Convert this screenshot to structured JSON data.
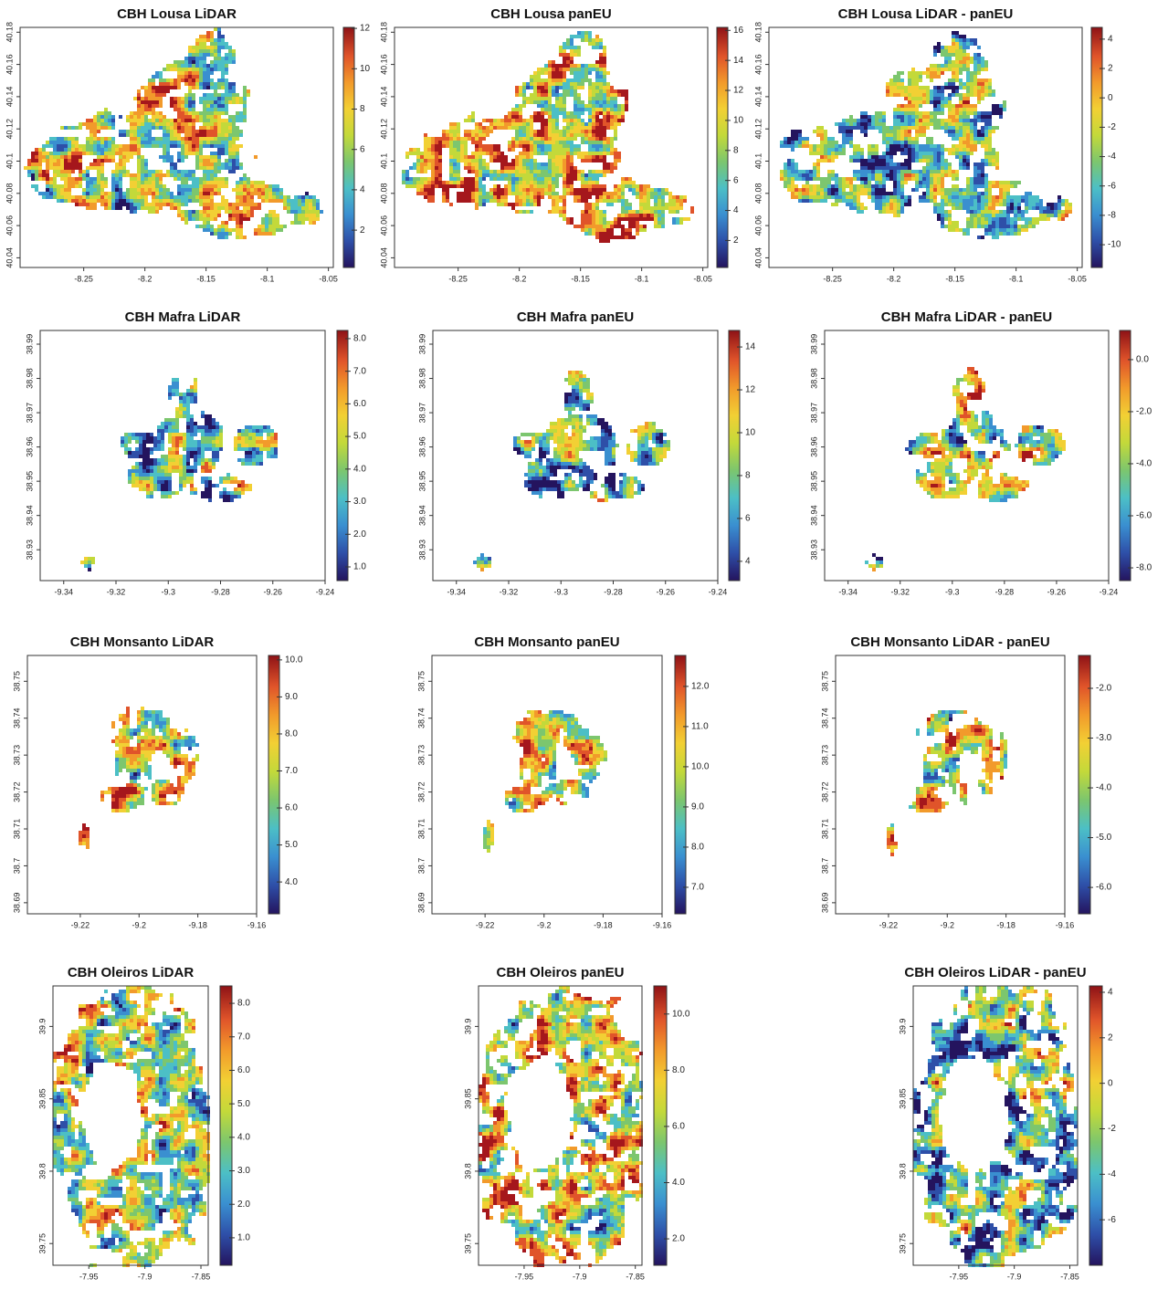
{
  "chart_data": [
    {
      "type": "heatmap",
      "title": "CBH Lousa LiDAR",
      "xlim": [
        -8.302,
        -8.046
      ],
      "xticks": [
        -8.25,
        -8.2,
        -8.15,
        -8.1,
        -8.05
      ],
      "ylim": [
        40.034,
        40.183
      ],
      "yticks": [
        40.04,
        40.06,
        40.08,
        40.1,
        40.12,
        40.14,
        40.16,
        40.18
      ],
      "clim": [
        0.15,
        12.05
      ],
      "cticks": [
        2,
        4,
        6,
        8,
        10,
        12
      ]
    },
    {
      "type": "heatmap",
      "title": "CBH Lousa panEU",
      "xlim": [
        -8.302,
        -8.046
      ],
      "xticks": [
        -8.25,
        -8.2,
        -8.15,
        -8.1,
        -8.05
      ],
      "ylim": [
        40.034,
        40.183
      ],
      "yticks": [
        40.04,
        40.06,
        40.08,
        40.1,
        40.12,
        40.14,
        40.16,
        40.18
      ],
      "clim": [
        0.2,
        16.2
      ],
      "cticks": [
        2,
        4,
        6,
        8,
        10,
        12,
        14,
        16
      ]
    },
    {
      "type": "heatmap",
      "title": "CBH Lousa LiDAR - panEU",
      "xlim": [
        -8.302,
        -8.046
      ],
      "xticks": [
        -8.25,
        -8.2,
        -8.15,
        -8.1,
        -8.05
      ],
      "ylim": [
        40.034,
        40.183
      ],
      "yticks": [
        40.04,
        40.06,
        40.08,
        40.1,
        40.12,
        40.14,
        40.16,
        40.18
      ],
      "clim": [
        -11.55,
        4.8
      ],
      "cticks": [
        -10,
        -8,
        -6,
        -4,
        -2,
        0,
        2,
        4
      ]
    },
    {
      "type": "heatmap",
      "title": "CBH Mafra LiDAR",
      "xlim": [
        -9.349,
        -9.24
      ],
      "xticks": [
        -9.34,
        -9.32,
        -9.3,
        -9.28,
        -9.26,
        -9.24
      ],
      "ylim": [
        38.921,
        38.994
      ],
      "yticks": [
        38.93,
        38.94,
        38.95,
        38.96,
        38.97,
        38.98,
        38.99
      ],
      "clim": [
        0.58,
        8.25
      ],
      "cticks": [
        {
          "value": 1,
          "label": "1.0"
        },
        {
          "value": 2,
          "label": "2.0"
        },
        {
          "value": 3,
          "label": "3.0"
        },
        {
          "value": 4,
          "label": "4.0"
        },
        {
          "value": 5,
          "label": "5.0"
        },
        {
          "value": 6,
          "label": "6.0"
        },
        {
          "value": 7,
          "label": "7.0"
        },
        {
          "value": 8,
          "label": "8.0"
        }
      ]
    },
    {
      "type": "heatmap",
      "title": "CBH Mafra panEU",
      "xlim": [
        -9.349,
        -9.24
      ],
      "xticks": [
        -9.34,
        -9.32,
        -9.3,
        -9.28,
        -9.26,
        -9.24
      ],
      "ylim": [
        38.921,
        38.994
      ],
      "yticks": [
        38.93,
        38.94,
        38.95,
        38.96,
        38.97,
        38.98,
        38.99
      ],
      "clim": [
        3.1,
        14.77
      ],
      "cticks": [
        4,
        6,
        8,
        10,
        12,
        14
      ]
    },
    {
      "type": "heatmap",
      "title": "CBH Mafra LiDAR - panEU",
      "xlim": [
        -9.349,
        -9.24
      ],
      "xticks": [
        -9.34,
        -9.32,
        -9.3,
        -9.28,
        -9.26,
        -9.24
      ],
      "ylim": [
        38.921,
        38.994
      ],
      "yticks": [
        38.93,
        38.94,
        38.95,
        38.96,
        38.97,
        38.98,
        38.99
      ],
      "clim": [
        -8.49,
        1.12
      ],
      "cticks": [
        {
          "value": -8,
          "label": "-8.0"
        },
        {
          "value": -6,
          "label": "-6.0"
        },
        {
          "value": -4,
          "label": "-4.0"
        },
        {
          "value": -2,
          "label": "-2.0"
        },
        {
          "value": 0,
          "label": "0.0"
        }
      ]
    },
    {
      "type": "heatmap",
      "title": "CBH Monsanto LiDAR",
      "xlim": [
        -9.238,
        -9.16
      ],
      "xticks": [
        -9.22,
        -9.2,
        -9.18,
        -9.16
      ],
      "ylim": [
        38.687,
        38.757
      ],
      "yticks": [
        38.69,
        38.7,
        38.71,
        38.72,
        38.73,
        38.74,
        38.75
      ],
      "clim": [
        3.14,
        10.12
      ],
      "cticks": [
        {
          "value": 4,
          "label": "4.0"
        },
        {
          "value": 5,
          "label": "5.0"
        },
        {
          "value": 6,
          "label": "6.0"
        },
        {
          "value": 7,
          "label": "7.0"
        },
        {
          "value": 8,
          "label": "8.0"
        },
        {
          "value": 9,
          "label": "9.0"
        },
        {
          "value": 10,
          "label": "10.0"
        }
      ]
    },
    {
      "type": "heatmap",
      "title": "CBH Monsanto panEU",
      "xlim": [
        -9.238,
        -9.16
      ],
      "xticks": [
        -9.22,
        -9.2,
        -9.18,
        -9.16
      ],
      "ylim": [
        38.687,
        38.757
      ],
      "yticks": [
        38.69,
        38.7,
        38.71,
        38.72,
        38.73,
        38.74,
        38.75
      ],
      "clim": [
        6.34,
        12.77
      ],
      "cticks": [
        {
          "value": 7,
          "label": "7.0"
        },
        {
          "value": 8,
          "label": "8.0"
        },
        {
          "value": 9,
          "label": "9.0"
        },
        {
          "value": 10,
          "label": "10.0"
        },
        {
          "value": 11,
          "label": "11.0"
        },
        {
          "value": 12,
          "label": "12.0"
        }
      ]
    },
    {
      "type": "heatmap",
      "title": "CBH Monsanto LiDAR - panEU",
      "xlim": [
        -9.238,
        -9.16
      ],
      "xticks": [
        -9.22,
        -9.2,
        -9.18,
        -9.16
      ],
      "ylim": [
        38.687,
        38.757
      ],
      "yticks": [
        38.69,
        38.7,
        38.71,
        38.72,
        38.73,
        38.74,
        38.75
      ],
      "clim": [
        -6.53,
        -1.34
      ],
      "cticks": [
        {
          "value": -6,
          "label": "-6.0"
        },
        {
          "value": -5,
          "label": "-5.0"
        },
        {
          "value": -4,
          "label": "-4.0"
        },
        {
          "value": -3,
          "label": "-3.0"
        },
        {
          "value": -2,
          "label": "-2.0"
        }
      ]
    },
    {
      "type": "heatmap",
      "title": "CBH Oleiros LiDAR",
      "xlim": [
        -7.982,
        -7.8435
      ],
      "xticks": [
        -7.95,
        -7.9,
        -7.85
      ],
      "ylim": [
        39.735,
        39.928
      ],
      "yticks": [
        39.75,
        39.8,
        39.85,
        39.9
      ],
      "clim": [
        0.18,
        8.52
      ],
      "cticks": [
        {
          "value": 1,
          "label": "1.0"
        },
        {
          "value": 2,
          "label": "2.0"
        },
        {
          "value": 3,
          "label": "3.0"
        },
        {
          "value": 4,
          "label": "4.0"
        },
        {
          "value": 5,
          "label": "5.0"
        },
        {
          "value": 6,
          "label": "6.0"
        },
        {
          "value": 7,
          "label": "7.0"
        },
        {
          "value": 8,
          "label": "8.0"
        }
      ]
    },
    {
      "type": "heatmap",
      "title": "CBH Oleiros panEU",
      "xlim": [
        -7.991,
        -7.844
      ],
      "xticks": [
        -7.95,
        -7.9,
        -7.85
      ],
      "ylim": [
        39.735,
        39.928
      ],
      "yticks": [
        39.75,
        39.8,
        39.85,
        39.9
      ],
      "clim": [
        1.06,
        11.0
      ],
      "cticks": [
        {
          "value": 2,
          "label": "2.0"
        },
        {
          "value": 4,
          "label": "4.0"
        },
        {
          "value": 6,
          "label": "6.0"
        },
        {
          "value": 8,
          "label": "8.0"
        },
        {
          "value": 10,
          "label": "10.0"
        }
      ]
    },
    {
      "type": "heatmap",
      "title": "CBH Oleiros LiDAR - panEU",
      "xlim": [
        -7.991,
        -7.843
      ],
      "xticks": [
        -7.95,
        -7.9,
        -7.85
      ],
      "ylim": [
        39.735,
        39.928
      ],
      "yticks": [
        39.75,
        39.8,
        39.85,
        39.9
      ],
      "clim": [
        -8.0,
        4.28
      ],
      "cticks": [
        -6,
        -4,
        -2,
        0,
        2,
        4
      ]
    }
  ]
}
